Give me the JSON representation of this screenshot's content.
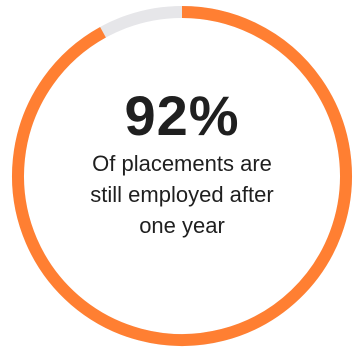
{
  "chart_data": {
    "type": "pie",
    "style": "donut-progress",
    "value_percent": 92,
    "remaining_percent": 8,
    "colors": {
      "filled": "#ff7f32",
      "track": "#e6e6e9"
    },
    "headline": "92%",
    "caption_lines": [
      "Of placements are",
      "still employed after",
      "one year"
    ]
  }
}
